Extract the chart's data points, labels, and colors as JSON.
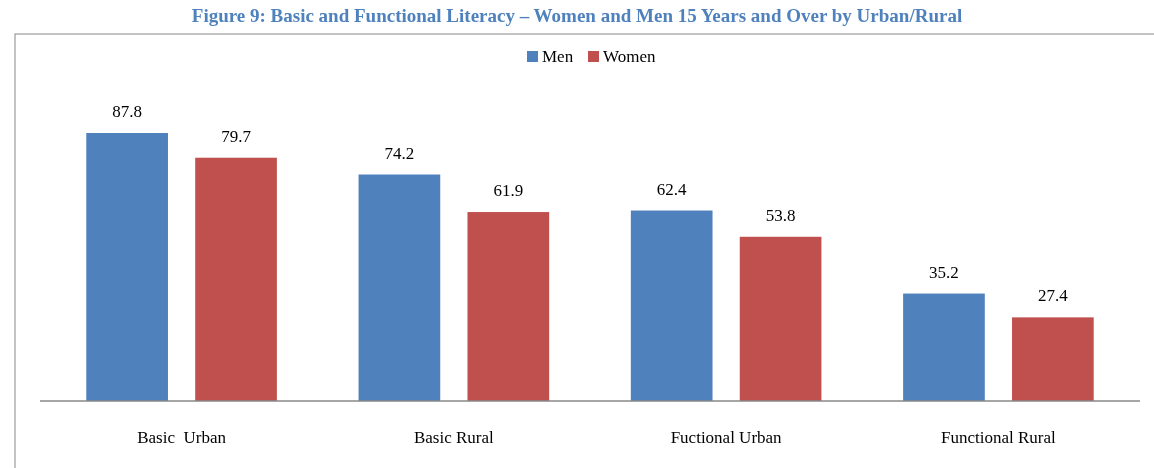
{
  "chart_data": {
    "type": "bar",
    "title": "Figure 9: Basic and Functional Literacy – Women and Men 15 Years and Over by Urban/Rural",
    "categories": [
      "Basic  Urban",
      "Basic Rural",
      "Fuctional Urban",
      "Functional Rural"
    ],
    "series": [
      {
        "name": "Men",
        "color": "#4f81bd",
        "values": [
          87.8,
          74.2,
          62.4,
          35.2
        ]
      },
      {
        "name": "Women",
        "color": "#c0504d",
        "values": [
          79.7,
          61.9,
          53.8,
          27.4
        ]
      }
    ],
    "data_labels": true,
    "legend": "top"
  }
}
